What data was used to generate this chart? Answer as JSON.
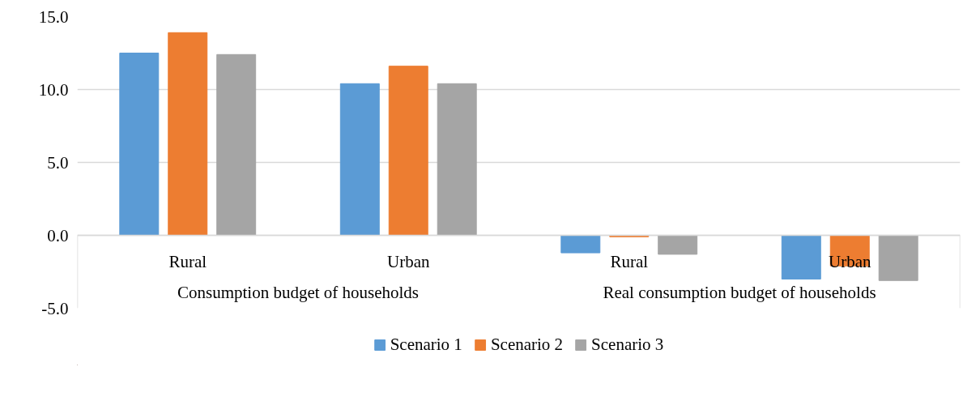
{
  "chart_data": {
    "type": "bar",
    "categories": [
      "Rural",
      "Urban",
      "Rural",
      "Urban"
    ],
    "annotations": [
      "Consumption budget of households",
      "Real consumption budget of households"
    ],
    "series": [
      {
        "name": "Scenario 1",
        "color": "#5b9bd5",
        "values": [
          12.5,
          10.4,
          -1.2,
          -3.0
        ]
      },
      {
        "name": "Scenario 2",
        "color": "#ed7d31",
        "values": [
          13.9,
          11.6,
          -0.1,
          -2.1
        ]
      },
      {
        "name": "Scenario 3",
        "color": "#a5a5a5",
        "values": [
          12.4,
          10.4,
          -1.3,
          -3.1
        ]
      }
    ],
    "ylim": [
      -5,
      15
    ],
    "yticks": [
      {
        "value": -5,
        "label": "-5.0"
      },
      {
        "value": 0,
        "label": "0.0"
      },
      {
        "value": 5,
        "label": "5.0"
      },
      {
        "value": 10,
        "label": "10.0"
      },
      {
        "value": 15,
        "label": "15.0"
      }
    ],
    "grid": "y",
    "legend": "bottom"
  }
}
